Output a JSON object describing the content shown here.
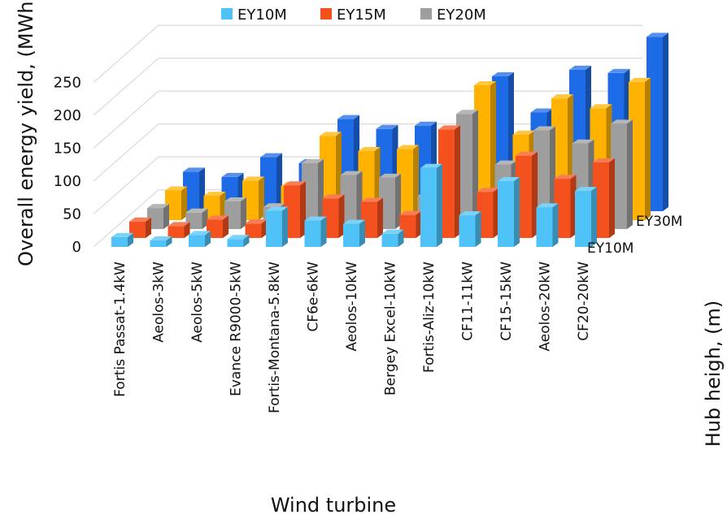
{
  "chart_data": {
    "type": "bar",
    "subtype": "3d-column",
    "xlabel": "Wind turbine",
    "ylabel": "Overall energy yield, (MWh)",
    "zlabel": "Hub heigh, (m)",
    "ylim": [
      0,
      250
    ],
    "yticks": [
      "0",
      "50",
      "100",
      "150",
      "200",
      "250"
    ],
    "grid": true,
    "legend_position": "top",
    "categories": [
      "Fortis Passat-1.4kW",
      "Aeolos-3kW",
      "Aeolos-5kW",
      "Evance R9000-5kW",
      "Fortis-Montana-5.8kW",
      "CF6e-6kW",
      "Aeolos-10kW",
      "Bergey Excel-10kW",
      "Fortis-Aliz-10kW",
      "CF11-11kW",
      "CF15-15kW",
      "Aeolos-20kW",
      "CF20-20kW"
    ],
    "depth_labels": [
      "EY10M",
      "EY30M"
    ],
    "series": [
      {
        "name": "EY10M",
        "color": "#4fc3f7",
        "values": [
          15,
          10,
          18,
          12,
          55,
          40,
          35,
          20,
          120,
          48,
          100,
          60,
          85
        ]
      },
      {
        "name": "EY15M",
        "color": "#f4511e",
        "values": [
          25,
          18,
          28,
          22,
          80,
          60,
          55,
          35,
          165,
          70,
          125,
          90,
          115
        ]
      },
      {
        "name": "EY20M",
        "color": "#9e9e9e",
        "values": [
          32,
          25,
          42,
          33,
          100,
          82,
          78,
          50,
          175,
          98,
          150,
          130,
          160
        ]
      },
      {
        "name": "",
        "color": "#ffb300",
        "values": [
          45,
          37,
          60,
          52,
          128,
          105,
          108,
          70,
          205,
          130,
          185,
          170,
          210
        ]
      },
      {
        "name": "EY30M",
        "color": "#1e6be8",
        "values": [
          60,
          52,
          82,
          73,
          140,
          125,
          130,
          90,
          205,
          150,
          215,
          210,
          265
        ]
      }
    ],
    "legend": [
      "EY10M",
      "EY15M",
      "EY20M"
    ]
  }
}
